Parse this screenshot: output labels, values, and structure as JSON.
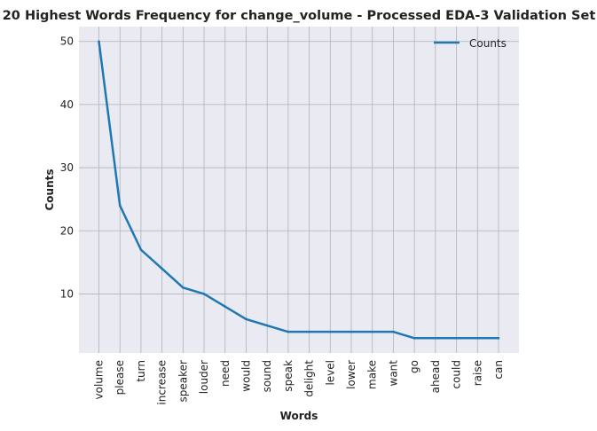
{
  "chart_data": {
    "type": "line",
    "title": "20 Highest Words Frequency for change_volume - Processed EDA-3 Validation Set",
    "xlabel": "Words",
    "ylabel": "Counts",
    "categories": [
      "volume",
      "please",
      "turn",
      "increase",
      "speaker",
      "louder",
      "need",
      "would",
      "sound",
      "speak",
      "delight",
      "level",
      "lower",
      "make",
      "want",
      "go",
      "ahead",
      "could",
      "raise",
      "can"
    ],
    "series": [
      {
        "name": "Counts",
        "values": [
          50,
          24,
          17,
          14,
          11,
          10,
          8,
          6,
          5,
          4,
          4,
          4,
          4,
          4,
          4,
          3,
          3,
          3,
          3,
          3
        ]
      }
    ],
    "yticks": [
      10,
      20,
      30,
      40,
      50
    ],
    "ylim": [
      0.65,
      52.35
    ],
    "grid": true,
    "legend_position": "top-right",
    "colors": {
      "line": "#1f77b4",
      "plot_background": "#eaeaf2",
      "grid": "#b0b0b8"
    }
  }
}
